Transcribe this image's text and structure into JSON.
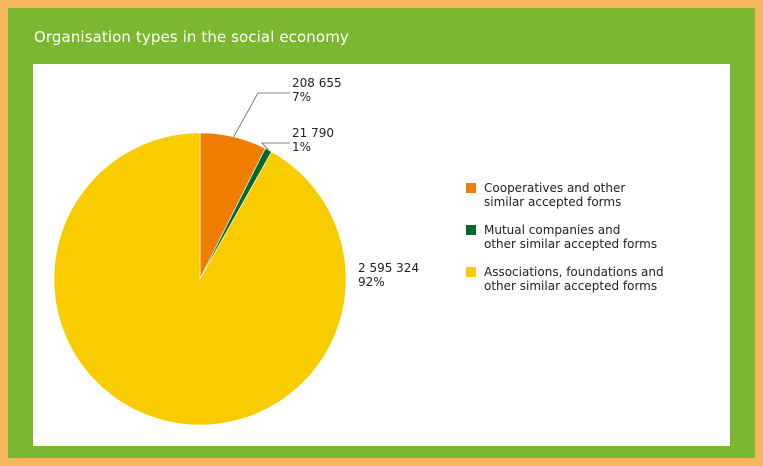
{
  "title": "Organisation types in the social economy",
  "chart_data": {
    "type": "pie",
    "title": "Organisation types in the social economy",
    "start_angle_deg": 0,
    "direction": "clockwise",
    "legend_position": "right",
    "slices": [
      {
        "legend": [
          "Cooperatives and other",
          "similar accepted forms"
        ],
        "value": 208655,
        "value_label": "208 655",
        "percent_label": "7%",
        "color": "#EE7D00"
      },
      {
        "legend": [
          "Mutual companies and",
          "other similar accepted forms"
        ],
        "value": 21790,
        "value_label": "21 790",
        "percent_label": "1%",
        "color": "#00692E"
      },
      {
        "legend": [
          "Associations, foundations and",
          "other similar accepted forms"
        ],
        "value": 2595324,
        "value_label": "2 595 324",
        "percent_label": "92%",
        "color": "#F9CC00"
      }
    ]
  }
}
